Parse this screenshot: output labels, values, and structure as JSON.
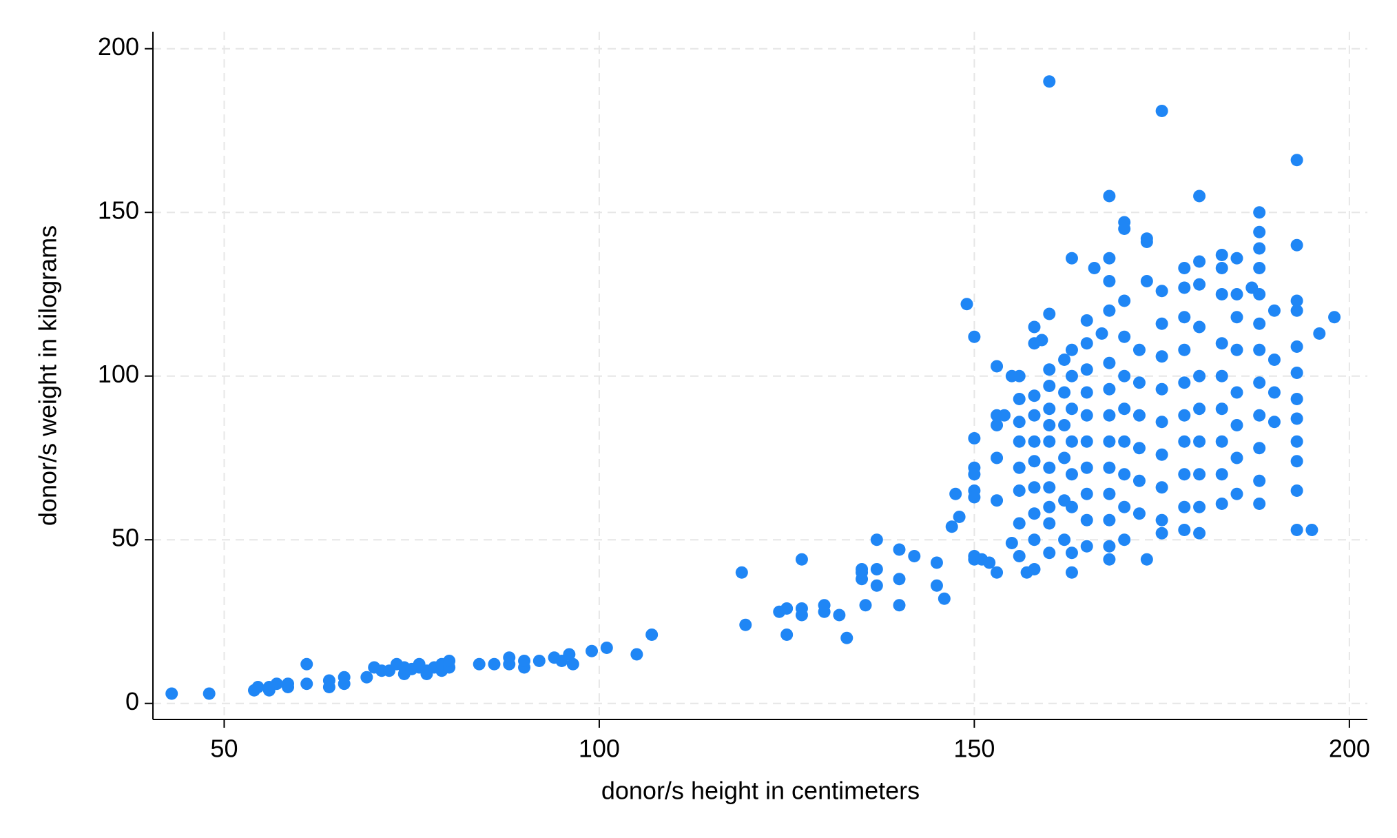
{
  "chart_data": {
    "type": "scatter",
    "x_label": "donor/s height in centimeters",
    "y_label": "donor/s weight in kilograms",
    "color": "#1f86f5",
    "grid": true,
    "xlim": [
      40.5,
      202.4
    ],
    "ylim": [
      -4.9,
      205.2
    ],
    "xticks": [
      50,
      100,
      150,
      200
    ],
    "yticks": [
      0,
      50,
      100,
      150,
      200
    ],
    "x": [
      43,
      48,
      54,
      54.5,
      56,
      56,
      57,
      58.5,
      58.5,
      61,
      61,
      64,
      64,
      66,
      66,
      69,
      70,
      71,
      72,
      73,
      74,
      74,
      75,
      76,
      76,
      77,
      77,
      78,
      79,
      79,
      80,
      80,
      84,
      86,
      88,
      88,
      90,
      90,
      92,
      94,
      95,
      96,
      96.5,
      99,
      101,
      105,
      107,
      119,
      119.5,
      124,
      125,
      125,
      127,
      127,
      127,
      130,
      130,
      132,
      133,
      135,
      135,
      135,
      135.5,
      137,
      137,
      137,
      140,
      140,
      140,
      142,
      145,
      145,
      146,
      147,
      147.5,
      148,
      149,
      150,
      150,
      150,
      150,
      150,
      150,
      150,
      150,
      151,
      152,
      153,
      153,
      153,
      153,
      153,
      153,
      154,
      155,
      155,
      156,
      156,
      156,
      156,
      156,
      156,
      156,
      156,
      157,
      158,
      158,
      158,
      158,
      158,
      158,
      158,
      158,
      158,
      158,
      159,
      160,
      160,
      160,
      160,
      160,
      160,
      160,
      160,
      160,
      160,
      160,
      160,
      162,
      162,
      162,
      162,
      162,
      162,
      163,
      163,
      163,
      163,
      163,
      163,
      163,
      163,
      163,
      165,
      165,
      165,
      165,
      165,
      165,
      165,
      165,
      165,
      165,
      166,
      167,
      168,
      168,
      168,
      168,
      168,
      168,
      168,
      168,
      168,
      168,
      168,
      168,
      168,
      170,
      170,
      170,
      170,
      170,
      170,
      170,
      170,
      170,
      170,
      172,
      172,
      172,
      172,
      172,
      172,
      173,
      173,
      173,
      173,
      175,
      175,
      175,
      175,
      175,
      175,
      175,
      175,
      175,
      175,
      178,
      178,
      178,
      178,
      178,
      178,
      178,
      178,
      178,
      178,
      180,
      180,
      180,
      180,
      180,
      180,
      180,
      180,
      180,
      180,
      183,
      183,
      183,
      183,
      183,
      183,
      183,
      183,
      183,
      185,
      185,
      185,
      185,
      185,
      185,
      185,
      185,
      187,
      188,
      188,
      188,
      188,
      188,
      188,
      188,
      188,
      188,
      188,
      188,
      188,
      190,
      190,
      190,
      190,
      193,
      193,
      193,
      193,
      193,
      193,
      193,
      193,
      193,
      193,
      193,
      193,
      195,
      196,
      198
    ],
    "values": [
      3,
      3,
      4,
      5,
      4,
      5,
      6,
      5,
      6,
      6,
      12,
      5,
      7,
      6,
      8,
      8,
      11,
      10,
      10,
      12,
      9,
      11,
      10.5,
      11,
      12,
      9,
      10,
      11,
      10,
      12,
      11,
      13,
      12,
      12,
      12,
      14,
      11,
      13,
      13,
      14,
      13,
      15,
      12,
      16,
      17,
      15,
      21,
      40,
      24,
      28,
      21,
      29,
      44,
      27,
      29,
      28,
      30,
      27,
      20,
      38,
      40,
      41,
      30,
      50,
      41,
      36,
      47,
      38,
      30,
      45,
      43,
      36,
      32,
      54,
      64,
      57,
      122,
      112,
      81,
      72,
      70,
      65,
      63,
      45,
      44,
      44,
      43,
      85,
      88,
      103,
      40,
      62,
      75,
      88,
      100,
      49,
      100,
      93,
      86,
      80,
      72,
      65,
      55,
      45,
      40,
      110,
      115,
      94,
      88,
      80,
      74,
      66,
      58,
      50,
      41,
      111,
      90,
      80,
      72,
      60,
      190,
      119,
      102,
      97,
      85,
      66,
      55,
      46,
      105,
      95,
      85,
      75,
      62,
      50,
      136,
      108,
      100,
      90,
      80,
      70,
      60,
      46,
      40,
      117,
      110,
      102,
      95,
      88,
      80,
      72,
      64,
      56,
      48,
      133,
      113,
      155,
      136,
      129,
      120,
      104,
      96,
      88,
      80,
      72,
      64,
      56,
      48,
      44,
      147,
      145,
      123,
      112,
      100,
      90,
      80,
      70,
      60,
      50,
      108,
      98,
      88,
      78,
      68,
      58,
      141,
      142,
      129,
      44,
      181,
      126,
      116,
      106,
      96,
      86,
      76,
      66,
      56,
      52,
      133,
      127,
      118,
      108,
      98,
      88,
      80,
      70,
      60,
      53,
      155,
      135,
      128,
      115,
      100,
      90,
      80,
      70,
      60,
      52,
      137,
      133,
      125,
      110,
      100,
      90,
      80,
      70,
      61,
      136,
      125,
      118,
      108,
      95,
      85,
      75,
      64,
      127,
      150,
      144,
      139,
      133,
      125,
      116,
      108,
      98,
      88,
      78,
      68,
      61,
      120,
      105,
      95,
      86,
      166,
      140,
      123,
      120,
      109,
      101,
      93,
      87,
      80,
      74,
      65,
      53,
      53,
      113,
      118
    ]
  }
}
